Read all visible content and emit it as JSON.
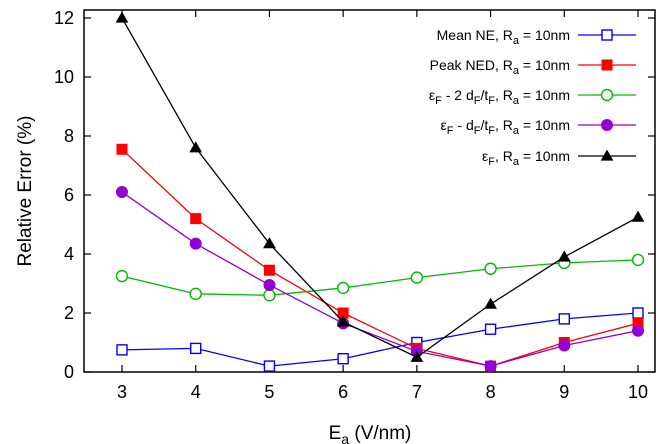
{
  "chart_data": {
    "type": "line",
    "xlabel": {
      "main": "E",
      "sub": "a",
      "rest": " (V/nm)"
    },
    "ylabel": "Relative Error (%)",
    "xlim": [
      3,
      10
    ],
    "ylim": [
      0,
      12
    ],
    "xticks": [
      3,
      4,
      5,
      6,
      7,
      8,
      9,
      10
    ],
    "yticks": [
      0,
      2,
      4,
      6,
      8,
      10,
      12
    ],
    "grid": false,
    "legend_position": "top-right",
    "x": [
      3,
      4,
      5,
      6,
      7,
      8,
      9,
      10
    ],
    "series": [
      {
        "label_parts": [
          [
            "t",
            "Mean NE, R"
          ],
          [
            "sub",
            "a"
          ],
          [
            "t",
            " = 10nm"
          ]
        ],
        "color": "#0000ff",
        "marker": "square-open",
        "values": [
          0.75,
          0.8,
          0.2,
          0.45,
          1.0,
          1.45,
          1.8,
          2.0
        ]
      },
      {
        "label_parts": [
          [
            "t",
            "Peak NED, R"
          ],
          [
            "sub",
            "a"
          ],
          [
            "t",
            " = 10nm"
          ]
        ],
        "color": "#ff0000",
        "marker": "square-filled",
        "values": [
          7.55,
          5.2,
          3.45,
          2.0,
          0.8,
          0.2,
          1.0,
          1.65
        ]
      },
      {
        "label_parts": [
          [
            "t",
            "ε"
          ],
          [
            "sub",
            "F"
          ],
          [
            "t",
            " - 2 d"
          ],
          [
            "sub",
            "F"
          ],
          [
            "t",
            "/t"
          ],
          [
            "sub",
            "F"
          ],
          [
            "t",
            ", R"
          ],
          [
            "sub",
            "a"
          ],
          [
            "t",
            " = 10nm"
          ]
        ],
        "color": "#00bb00",
        "marker": "circle-open",
        "values": [
          3.25,
          2.65,
          2.6,
          2.85,
          3.2,
          3.5,
          3.7,
          3.8
        ]
      },
      {
        "label_parts": [
          [
            "t",
            "ε"
          ],
          [
            "sub",
            "F"
          ],
          [
            "t",
            " - d"
          ],
          [
            "sub",
            "F"
          ],
          [
            "t",
            "/t"
          ],
          [
            "sub",
            "F"
          ],
          [
            "t",
            ", R"
          ],
          [
            "sub",
            "a"
          ],
          [
            "t",
            " = 10nm"
          ]
        ],
        "color": "#9400d3",
        "marker": "circle-filled",
        "values": [
          6.1,
          4.35,
          2.95,
          1.65,
          0.7,
          0.2,
          0.9,
          1.4
        ]
      },
      {
        "label_parts": [
          [
            "t",
            "ε"
          ],
          [
            "sub",
            "F"
          ],
          [
            "t",
            ", R"
          ],
          [
            "sub",
            "a"
          ],
          [
            "t",
            " = 10nm"
          ]
        ],
        "color": "#000000",
        "marker": "triangle-filled",
        "values": [
          12.0,
          7.6,
          4.35,
          1.7,
          0.5,
          2.3,
          3.9,
          5.25
        ]
      }
    ]
  }
}
